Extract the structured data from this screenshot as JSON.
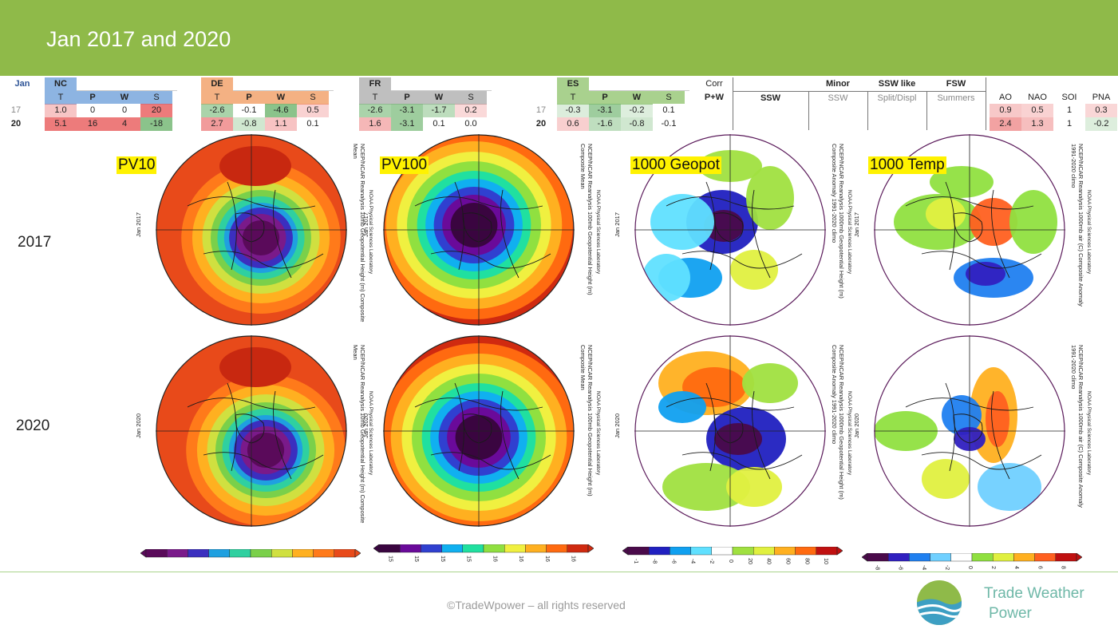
{
  "slide": {
    "title": "Jan 2017 and 2020",
    "footer": "©TradeWpower – all rights reserved",
    "brand_line1": "Trade Weather",
    "brand_line2": "Power"
  },
  "table": {
    "month_label": "Jan",
    "subcols": [
      "T",
      "P",
      "W",
      "S"
    ],
    "regions": [
      {
        "name": "NC",
        "rows": [
          [
            "1.0",
            "0",
            "0",
            "20"
          ],
          [
            "5.1",
            "16",
            "4",
            "-18"
          ]
        ]
      },
      {
        "name": "DE",
        "rows": [
          [
            "-2.6",
            "-0.1",
            "-4.6",
            "0.5"
          ],
          [
            "2.7",
            "-0.8",
            "1.1",
            "0.1"
          ]
        ]
      },
      {
        "name": "FR",
        "rows": [
          [
            "-2.6",
            "-3.1",
            "-1.7",
            "0.2"
          ],
          [
            "1.6",
            "-3.1",
            "0.1",
            "0.0"
          ]
        ]
      },
      {
        "name": "ES",
        "rows": [
          [
            "-0.3",
            "-3.1",
            "-0.2",
            "0.1"
          ],
          [
            "0.6",
            "-1.6",
            "-0.8",
            "-0.1"
          ]
        ]
      }
    ],
    "year_rows": [
      "17",
      "20"
    ],
    "corr_label": "Corr",
    "pw_label": "P+W",
    "ssw_headers": [
      {
        "top": "",
        "sub": "SSW"
      },
      {
        "top": "Minor",
        "sub": "SSW"
      },
      {
        "top": "SSW like",
        "sub": "Split/Displ"
      },
      {
        "top": "FSW",
        "sub": "Summers"
      }
    ],
    "index_headers": [
      "AO",
      "NAO",
      "SOI",
      "PNA"
    ],
    "index_rows": [
      [
        "0.9",
        "0.5",
        "1",
        "0.3"
      ],
      [
        "2.4",
        "1.3",
        "1",
        "-0.2"
      ]
    ]
  },
  "years": [
    "2017",
    "2020"
  ],
  "maps": [
    {
      "title": "PV10",
      "type": "pv10",
      "caption": "NCEP/NCAR Reanalysis 10mb Geopotential Height (m) Composite Mean",
      "side": "NOAA Physical Sciences Laboratory",
      "date_2017": "Jan 2017",
      "date_2020": "Jan 2020",
      "scale_ticks": [
        "",
        "",
        "",
        "",
        "",
        "",
        "",
        "",
        "",
        "",
        "",
        "",
        "",
        "",
        ""
      ]
    },
    {
      "title": "PV100",
      "type": "pv100",
      "caption": "NCEP/NCAR Reanalysis 100mb Geopotential Height (m) Composite Mean",
      "side": "NOAA Physical Sciences Laboratory",
      "date_2017": "Jan 2017",
      "date_2020": "Jan 2020",
      "scale_ticks": [
        "15",
        "15",
        "15",
        "15",
        "16",
        "16",
        "16",
        "16"
      ]
    },
    {
      "title": "1000 Geopot",
      "type": "geop",
      "caption": "NCEP/NCAR Reanalysis 1000mb Geopotential Height (m) Composite Anomaly 1991-2020 climo",
      "side": "NOAA Physical Sciences Laboratory",
      "date_2017": "Jan 2017",
      "date_2020": "Jan 2020",
      "scale_ticks": [
        "-1",
        "-8",
        "-6",
        "-4",
        "-2",
        "0",
        "20",
        "40",
        "60",
        "80",
        "10"
      ]
    },
    {
      "title": "1000 Temp",
      "type": "temp",
      "caption": "NCEP/NCAR Reanalysis 1000mb air (C) Composite Anomaly 1991-2020 climo",
      "side": "NOAA Physical Sciences Laboratory",
      "date_2017": "Jan 2017",
      "date_2020": "Jan 2020",
      "scale_ticks": [
        "-8",
        "-6",
        "-4",
        "-2",
        "0",
        "2",
        "4",
        "6",
        "8"
      ]
    }
  ]
}
